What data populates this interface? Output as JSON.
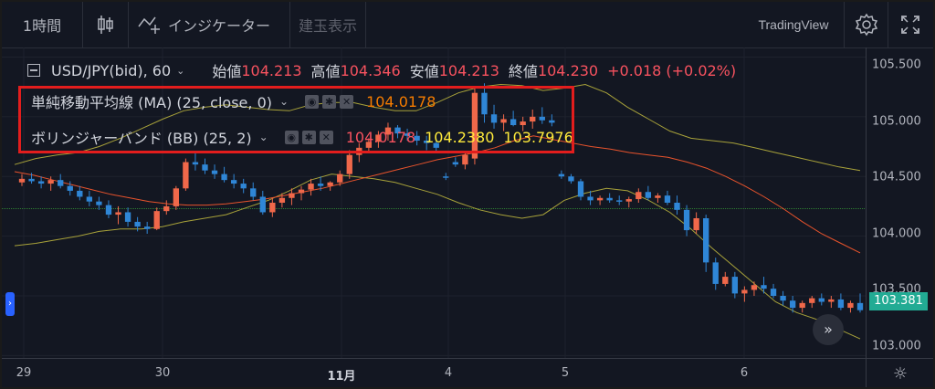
{
  "toolbar": {
    "interval": "1時間",
    "indicators_label": "インジケーター",
    "trade_label": "建玉表示",
    "brand": "TradingView"
  },
  "legend": {
    "symbol": "USD/JPY(bid), 60",
    "open_label": "始値",
    "open": "104.213",
    "high_label": "高値",
    "high": "104.346",
    "low_label": "安値",
    "low": "104.213",
    "close_label": "終値",
    "close": "104.230",
    "change": "+0.018 (+0.02%)"
  },
  "indicators": [
    {
      "name": "単純移動平均線 (MA) (25, close, 0)",
      "values": [
        "104.0178"
      ],
      "colors": [
        "#f57c00"
      ]
    },
    {
      "name": "ボリンジャーバンド (BB) (25, 2)",
      "values": [
        "104.0178",
        "104.2380",
        "103.7976"
      ],
      "colors": [
        "#f7525f",
        "#ffeb3b",
        "#ffeb3b"
      ]
    }
  ],
  "current_price": "103.381",
  "colors": {
    "up": "#f0684a",
    "down": "#2f86d6",
    "ma": "#e8532c",
    "bb": "#a8a23a",
    "highlight": "#e21d1d"
  },
  "chart_data": {
    "type": "candlestick",
    "y_ticks": [
      "105.500",
      "105.000",
      "104.500",
      "104.000",
      "103.500",
      "103.000"
    ],
    "x_ticks": [
      "29",
      "30",
      "11月",
      "4",
      "5",
      "6"
    ],
    "ylim": [
      102.98,
      105.58
    ],
    "candles": [
      [
        104.45,
        104.52,
        104.42,
        104.48
      ],
      [
        104.48,
        104.53,
        104.44,
        104.46
      ],
      [
        104.46,
        104.5,
        104.4,
        104.44
      ],
      [
        104.44,
        104.5,
        104.38,
        104.47
      ],
      [
        104.47,
        104.52,
        104.4,
        104.42
      ],
      [
        104.42,
        104.46,
        104.34,
        104.38
      ],
      [
        104.38,
        104.42,
        104.3,
        104.33
      ],
      [
        104.33,
        104.38,
        104.25,
        104.29
      ],
      [
        104.29,
        104.33,
        104.22,
        104.26
      ],
      [
        104.26,
        104.3,
        104.15,
        104.18
      ],
      [
        104.18,
        104.25,
        104.1,
        104.2
      ],
      [
        104.2,
        104.24,
        104.08,
        104.12
      ],
      [
        104.12,
        104.16,
        104.04,
        104.08
      ],
      [
        104.08,
        104.12,
        104.02,
        104.06
      ],
      [
        104.06,
        104.24,
        104.05,
        104.21
      ],
      [
        104.21,
        104.3,
        104.18,
        104.25
      ],
      [
        104.25,
        104.42,
        104.22,
        104.4
      ],
      [
        104.4,
        104.65,
        104.38,
        104.62
      ],
      [
        104.62,
        104.7,
        104.55,
        104.6
      ],
      [
        104.6,
        104.65,
        104.52,
        104.55
      ],
      [
        104.55,
        104.6,
        104.48,
        104.52
      ],
      [
        104.52,
        104.58,
        104.45,
        104.47
      ],
      [
        104.47,
        104.52,
        104.4,
        104.44
      ],
      [
        104.44,
        104.48,
        104.36,
        104.4
      ],
      [
        104.4,
        104.45,
        104.3,
        104.33
      ],
      [
        104.33,
        104.38,
        104.18,
        104.2
      ],
      [
        104.2,
        104.32,
        104.16,
        104.28
      ],
      [
        104.28,
        104.36,
        104.24,
        104.32
      ],
      [
        104.32,
        104.4,
        104.26,
        104.36
      ],
      [
        104.36,
        104.42,
        104.3,
        104.39
      ],
      [
        104.39,
        104.48,
        104.34,
        104.44
      ],
      [
        104.44,
        104.5,
        104.38,
        104.42
      ],
      [
        104.42,
        104.46,
        104.38,
        104.45
      ],
      [
        104.45,
        104.55,
        104.42,
        104.52
      ],
      [
        104.52,
        104.72,
        104.48,
        104.68
      ],
      [
        104.68,
        104.78,
        104.62,
        104.74
      ],
      [
        104.74,
        104.82,
        104.7,
        104.79
      ],
      [
        104.79,
        104.88,
        104.74,
        104.85
      ],
      [
        104.85,
        104.95,
        104.8,
        104.91
      ],
      [
        104.91,
        104.93,
        104.82,
        104.86
      ],
      [
        104.86,
        104.9,
        104.8,
        104.84
      ],
      [
        104.84,
        104.88,
        104.76,
        104.8
      ],
      [
        104.8,
        104.84,
        104.72,
        104.78
      ],
      [
        104.78,
        104.82,
        104.7,
        104.74
      ],
      [
        104.5,
        104.53,
        104.47,
        104.49
      ],
      [
        104.62,
        104.66,
        104.58,
        104.6
      ],
      [
        104.6,
        104.7,
        104.56,
        104.68
      ],
      [
        104.65,
        105.25,
        104.6,
        105.2
      ],
      [
        105.2,
        105.28,
        104.95,
        105.02
      ],
      [
        105.02,
        105.1,
        104.9,
        104.95
      ],
      [
        104.95,
        105.02,
        104.88,
        104.98
      ],
      [
        104.98,
        105.05,
        104.92,
        104.93
      ],
      [
        104.93,
        105.0,
        104.88,
        104.96
      ],
      [
        104.96,
        105.06,
        104.9,
        105.0
      ],
      [
        105.0,
        105.08,
        104.94,
        104.97
      ],
      [
        104.97,
        105.02,
        104.92,
        104.95
      ],
      [
        104.52,
        104.55,
        104.48,
        104.5
      ],
      [
        104.5,
        104.52,
        104.44,
        104.46
      ],
      [
        104.46,
        104.48,
        104.3,
        104.33
      ],
      [
        104.33,
        104.38,
        104.26,
        104.3
      ],
      [
        104.3,
        104.34,
        104.26,
        104.32
      ],
      [
        104.32,
        104.36,
        104.28,
        104.3
      ],
      [
        104.3,
        104.34,
        104.26,
        104.29
      ],
      [
        104.29,
        104.33,
        104.24,
        104.31
      ],
      [
        104.31,
        104.4,
        104.28,
        104.37
      ],
      [
        104.37,
        104.42,
        104.3,
        104.32
      ],
      [
        104.32,
        104.36,
        104.28,
        104.34
      ],
      [
        104.34,
        104.38,
        104.26,
        104.28
      ],
      [
        104.28,
        104.34,
        104.18,
        104.22
      ],
      [
        104.22,
        104.26,
        104.0,
        104.05
      ],
      [
        104.05,
        104.2,
        104.02,
        104.15
      ],
      [
        104.15,
        104.18,
        103.7,
        103.78
      ],
      [
        103.78,
        103.82,
        103.55,
        103.6
      ],
      [
        103.6,
        103.7,
        103.58,
        103.66
      ],
      [
        103.66,
        103.7,
        103.48,
        103.52
      ],
      [
        103.52,
        103.58,
        103.45,
        103.55
      ],
      [
        103.55,
        103.62,
        103.5,
        103.59
      ],
      [
        103.59,
        103.66,
        103.52,
        103.56
      ],
      [
        103.56,
        103.6,
        103.48,
        103.5
      ],
      [
        103.5,
        103.54,
        103.42,
        103.46
      ],
      [
        103.46,
        103.5,
        103.36,
        103.4
      ],
      [
        103.4,
        103.46,
        103.36,
        103.44
      ],
      [
        103.44,
        103.5,
        103.4,
        103.48
      ],
      [
        103.48,
        103.52,
        103.42,
        103.45
      ],
      [
        103.45,
        103.5,
        103.4,
        103.47
      ],
      [
        103.47,
        103.52,
        103.38,
        103.4
      ],
      [
        103.4,
        103.46,
        103.36,
        103.44
      ],
      [
        103.44,
        103.52,
        103.36,
        103.38
      ]
    ],
    "ma": [
      104.54,
      104.51,
      104.47,
      104.43,
      104.39,
      104.35,
      104.32,
      104.29,
      104.27,
      104.26,
      104.26,
      104.27,
      104.29,
      104.31,
      104.34,
      104.37,
      104.4,
      104.44,
      104.48,
      104.52,
      104.56,
      104.6,
      104.64,
      104.67,
      104.7,
      104.74,
      104.8,
      104.84,
      104.81,
      104.78,
      104.75,
      104.73,
      104.7,
      104.68,
      104.66,
      104.62,
      104.57,
      104.5,
      104.42,
      104.33,
      104.23,
      104.12,
      104.02,
      103.94,
      103.86
    ],
    "bb_upper": [
      104.6,
      104.65,
      104.68,
      104.7,
      104.75,
      104.82,
      104.9,
      104.98,
      105.05,
      105.08,
      105.1,
      105.08,
      105.06,
      105.05,
      105.1,
      105.12,
      105.12,
      105.08,
      105.05,
      105.05,
      105.12,
      105.2,
      105.25,
      105.27,
      105.26,
      105.22,
      105.24,
      105.27,
      105.2,
      105.08,
      104.98,
      104.88,
      104.82,
      104.8,
      104.78,
      104.74,
      104.7,
      104.66,
      104.62,
      104.58,
      104.55
    ],
    "bb_lower": [
      103.92,
      103.94,
      103.97,
      104.0,
      104.04,
      104.06,
      104.06,
      104.08,
      104.12,
      104.15,
      104.18,
      104.24,
      104.3,
      104.38,
      104.47,
      104.52,
      104.5,
      104.48,
      104.45,
      104.4,
      104.35,
      104.28,
      104.22,
      104.18,
      104.15,
      104.18,
      104.3,
      104.36,
      104.4,
      104.38,
      104.3,
      104.2,
      104.06,
      103.9,
      103.75,
      103.6,
      103.45,
      103.36,
      103.3,
      103.22,
      103.14
    ],
    "hline": 104.23
  }
}
